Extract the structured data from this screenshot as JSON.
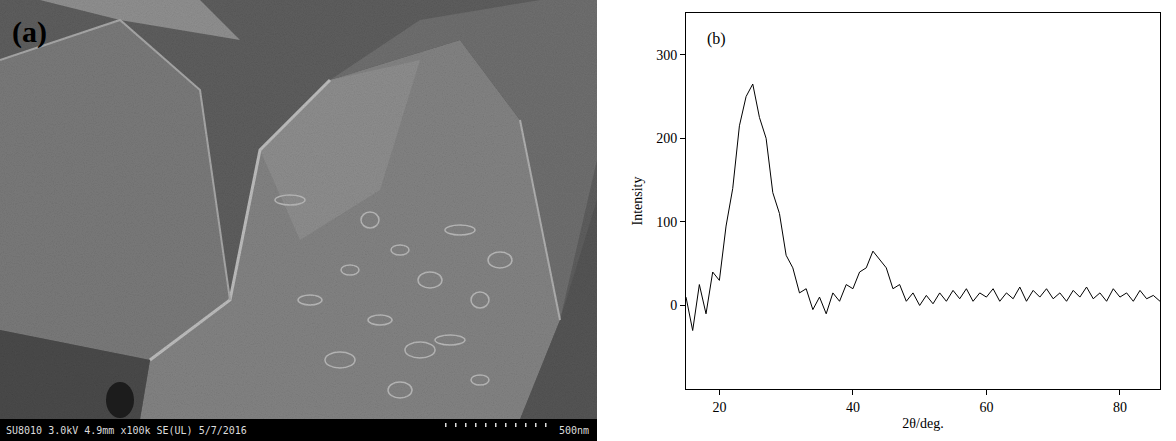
{
  "image_panel": {
    "label": "(a)",
    "caption": "SU8010 3.0kV 4.9mm x100k SE(UL) 5/7/2016",
    "scale_bar": "500nm"
  },
  "chart_data": {
    "type": "line",
    "annotations": [
      {
        "text": "(b)"
      }
    ],
    "x_label": "2θ/deg.",
    "y_label": "Intensity",
    "color": "#000000",
    "grid": false,
    "x": [
      15,
      16,
      17,
      18,
      19,
      20,
      21,
      22,
      23,
      24,
      25,
      26,
      27,
      28,
      29,
      30,
      31,
      32,
      33,
      34,
      35,
      36,
      37,
      38,
      39,
      40,
      41,
      42,
      43,
      44,
      45,
      46,
      47,
      48,
      49,
      50,
      51,
      52,
      53,
      54,
      55,
      56,
      57,
      58,
      59,
      60,
      61,
      62,
      63,
      64,
      65,
      66,
      67,
      68,
      69,
      70,
      71,
      72,
      73,
      74,
      75,
      76,
      77,
      78,
      79,
      80,
      81,
      82,
      83,
      84,
      85,
      86
    ],
    "values": [
      10,
      -30,
      25,
      -10,
      40,
      30,
      95,
      140,
      215,
      250,
      265,
      225,
      200,
      135,
      110,
      60,
      45,
      15,
      20,
      -5,
      10,
      -10,
      15,
      5,
      25,
      20,
      40,
      45,
      65,
      55,
      45,
      20,
      25,
      5,
      15,
      0,
      12,
      2,
      15,
      5,
      18,
      8,
      20,
      5,
      15,
      10,
      20,
      5,
      15,
      8,
      22,
      5,
      18,
      10,
      20,
      8,
      15,
      5,
      18,
      10,
      22,
      8,
      15,
      5,
      20,
      10,
      15,
      5,
      18,
      8,
      12,
      5
    ],
    "xlim": [
      15,
      86
    ],
    "xticks": [
      20,
      40,
      60,
      80
    ],
    "ylim": [
      -100,
      350
    ],
    "yticks": [
      0,
      100,
      200,
      300
    ]
  }
}
